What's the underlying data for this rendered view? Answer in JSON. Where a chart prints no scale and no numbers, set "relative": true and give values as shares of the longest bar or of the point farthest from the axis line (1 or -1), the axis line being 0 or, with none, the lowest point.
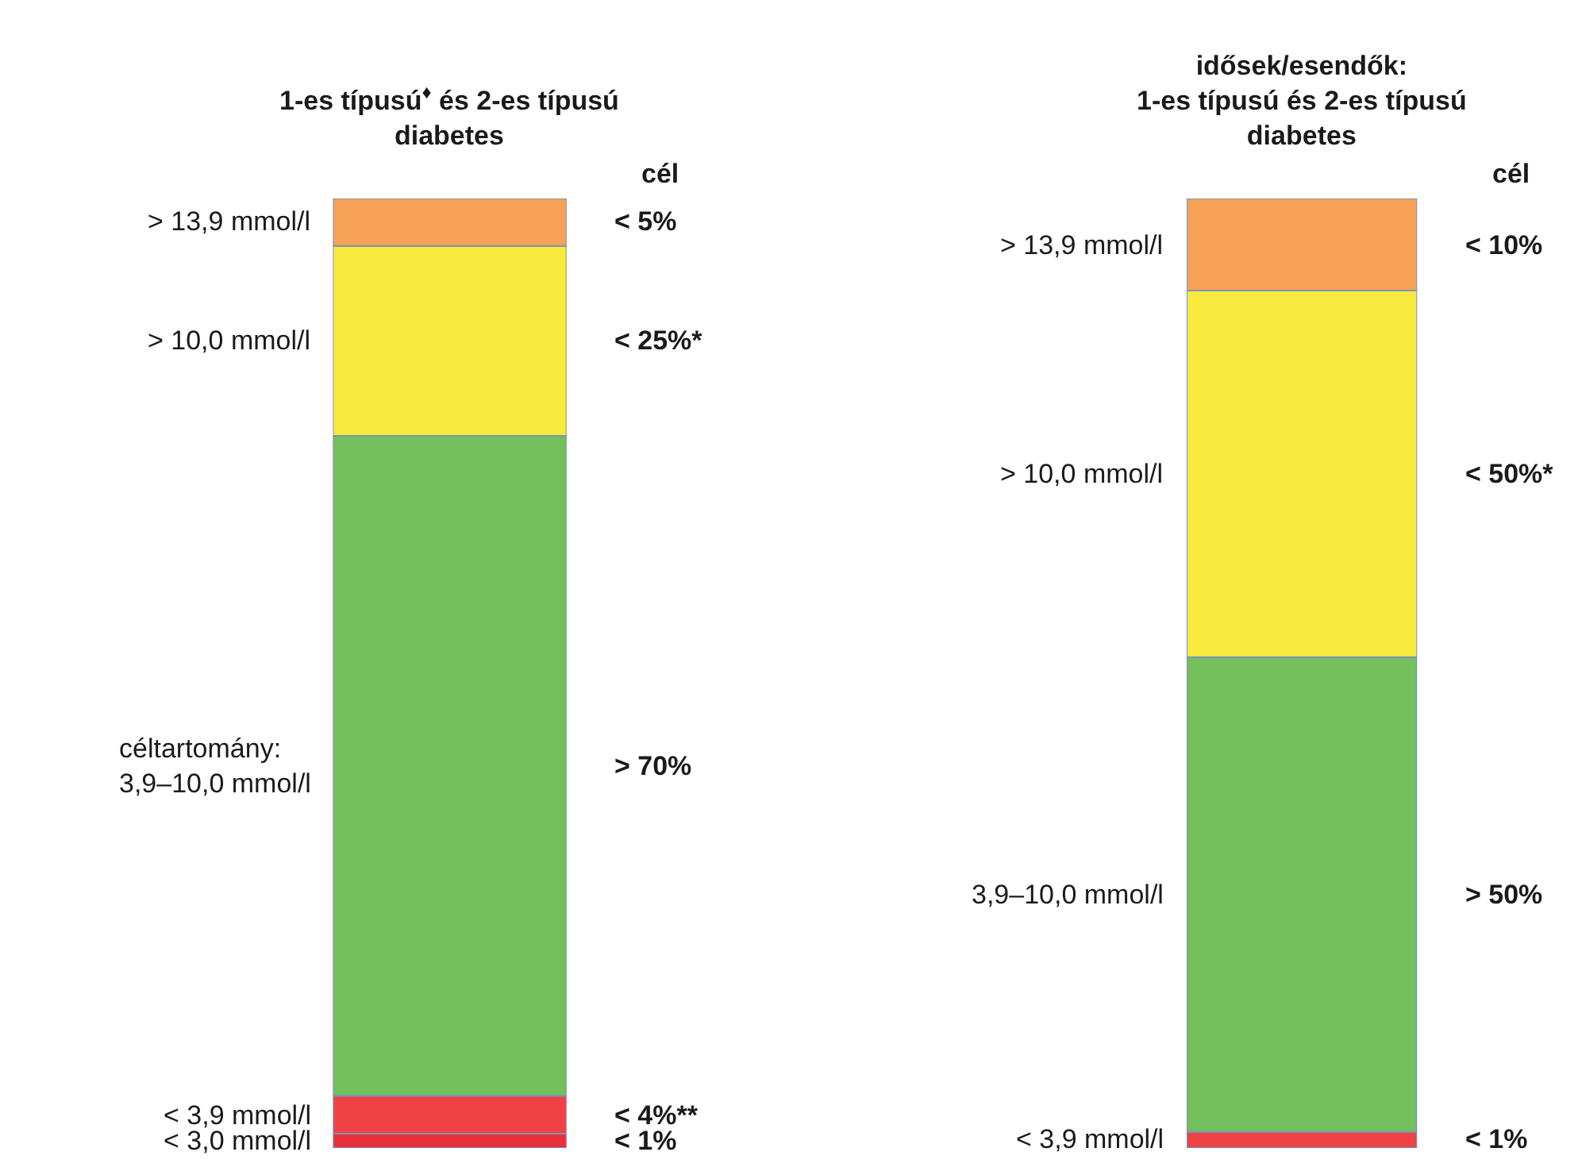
{
  "chart_data": [
    {
      "type": "bar",
      "stacked": true,
      "relative": true,
      "title": "1-es típusú$^{♦}$ és 2-es típusú\ndiabetes",
      "categories": [
        null
      ],
      "annotations": [
        "cél",
        "< 1%",
        "< 4%**",
        "> 70%",
        "< 25%*",
        "< 5%"
      ],
      "series": [
        {
          "name": "< 3,0 mmol/l",
          "color": "#e8303a",
          "values": [
            0.015
          ]
        },
        {
          "name": "< 3,9 mmol/l",
          "color": "#ef4245",
          "values": [
            0.04
          ]
        },
        {
          "name": "céltartomány:\n3,9–10,0 mmol/l",
          "color": "#72bf5b",
          "values": [
            0.695
          ]
        },
        {
          "name": "> 10,0 mmol/l",
          "color": "#f8ea3c",
          "values": [
            0.2
          ]
        },
        {
          "name": "> 13,9 mmol/l",
          "color": "#f6a155",
          "values": [
            0.05
          ]
        }
      ]
    },
    {
      "type": "bar",
      "stacked": true,
      "relative": true,
      "title": "idősek/esendők:\n1-es típusú és 2-es típusú\ndiabetes",
      "categories": [
        null
      ],
      "annotations": [
        "cél",
        "< 1%",
        "> 50%",
        "< 50%*",
        "< 10%"
      ],
      "series": [
        {
          "name": "< 3,9 mmol/l",
          "color": "#ef4245",
          "values": [
            0.017
          ]
        },
        {
          "name": "3,9–10,0 mmol/l",
          "color": "#72bf5b",
          "values": [
            0.5
          ]
        },
        {
          "name": "> 10,0 mmol/l",
          "color": "#f8ea3c",
          "values": [
            0.386
          ]
        },
        {
          "name": "> 13,9 mmol/l",
          "color": "#f6a155",
          "values": [
            0.097
          ]
        }
      ]
    }
  ]
}
